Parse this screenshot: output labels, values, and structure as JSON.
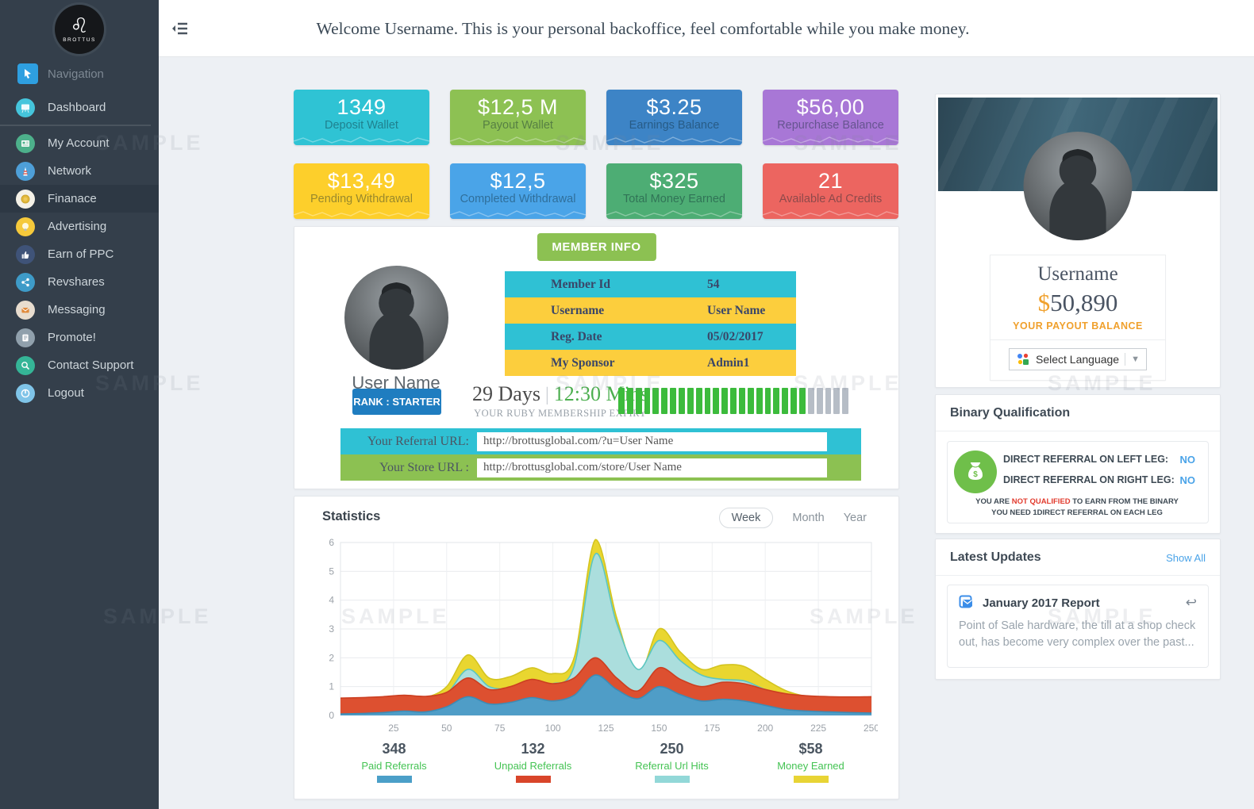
{
  "watermark": "SAMPLE",
  "sidebar": {
    "logo_text": "BROTTUS",
    "section_label": "Navigation",
    "items": [
      {
        "label": "Dashboard",
        "icon": "dashboard-icon",
        "color": "#45c5dc"
      },
      {
        "label": "My Account",
        "icon": "account-icon",
        "color": "#4db08b"
      },
      {
        "label": "Network",
        "icon": "network-icon",
        "color": "#4e9fd8"
      },
      {
        "label": "Finanace",
        "icon": "finance-icon",
        "color": "#f4f1e7",
        "active": true
      },
      {
        "label": "Advertising",
        "icon": "advertising-icon",
        "color": "#f5c93b"
      },
      {
        "label": "Earn of PPC",
        "icon": "earn-ppc-icon",
        "color": "#3f5378"
      },
      {
        "label": "Revshares",
        "icon": "revshares-icon",
        "color": "#3e9bc8"
      },
      {
        "label": "Messaging",
        "icon": "messaging-icon",
        "color": "#e8ddcf"
      },
      {
        "label": "Promote!",
        "icon": "promote-icon",
        "color": "#90a0ac"
      },
      {
        "label": "Contact Support",
        "icon": "support-icon",
        "color": "#35b597"
      },
      {
        "label": "Logout",
        "icon": "logout-icon",
        "color": "#7fc4e8"
      }
    ]
  },
  "header": {
    "welcome": "Welcome Username. This is your personal backoffice, feel comfortable while you make money."
  },
  "stat_cards": [
    {
      "value": "1349",
      "label": "Deposit Wallet",
      "color": "#2fc3d4"
    },
    {
      "value": "$12,5 M",
      "label": "Payout Wallet",
      "color": "#8dc153"
    },
    {
      "value": "$3.25",
      "label": "Earnings Balance",
      "color": "#3d84c6"
    },
    {
      "value": "$56,00",
      "label": "Repurchase Balance",
      "color": "#a877d6"
    },
    {
      "value": "$13,49",
      "label": "Pending Withdrawal",
      "color": "#fdcf2b"
    },
    {
      "value": "$12,5",
      "label": "Completed Withdrawal",
      "color": "#4aa4e8"
    },
    {
      "value": "$325",
      "label": "Total Money Earned",
      "color": "#4dad74"
    },
    {
      "value": "21",
      "label": "Available Ad Credits",
      "color": "#ec6560"
    }
  ],
  "member_info": {
    "badge": "MEMBER INFO",
    "avatar_name": "User Name",
    "rank_label": "RANK : STARTER",
    "rows": [
      {
        "label": "Member Id",
        "value": "54"
      },
      {
        "label": "Username",
        "value": "User Name"
      },
      {
        "label": "Reg. Date",
        "value": "05/02/2017"
      },
      {
        "label": "My Sponsor",
        "value": "Admin1"
      }
    ],
    "expiry_days": "29 Days",
    "expiry_time": "12:30 Mins",
    "expiry_caption": "YOUR RUBY MEMBERSHIP EXPIRY",
    "progress": {
      "filled": 22,
      "total": 27
    },
    "referral_url_label": "Your Referral URL:",
    "referral_url": "http://brottusglobal.com/?u=User Name",
    "store_url_label": "Your Store URL :",
    "store_url": "http://brottusglobal.com/store/User Name"
  },
  "statistics": {
    "title": "Statistics",
    "tabs": [
      "Week",
      "Month",
      "Year"
    ],
    "active_tab": "Week"
  },
  "chart_data": {
    "type": "area",
    "title": "Statistics",
    "x": [
      0,
      10,
      20,
      30,
      40,
      50,
      60,
      70,
      80,
      90,
      100,
      110,
      120,
      130,
      140,
      150,
      160,
      170,
      180,
      190,
      200,
      210,
      220,
      230,
      240,
      250
    ],
    "series": [
      {
        "name": "Money Earned",
        "stroke": "#d3c41f",
        "fill": "#e9d630",
        "values": [
          0.55,
          0.55,
          0.58,
          0.6,
          0.62,
          1.0,
          2.1,
          1.3,
          1.35,
          1.65,
          1.45,
          2.0,
          6.1,
          3.4,
          1.4,
          3.0,
          2.2,
          1.6,
          1.75,
          1.7,
          1.25,
          0.85,
          0.65,
          0.55,
          0.5,
          0.5
        ]
      },
      {
        "name": "Referral Url Hits",
        "stroke": "#5bc6c0",
        "fill": "#abdedd",
        "values": [
          0.5,
          0.5,
          0.5,
          0.52,
          0.55,
          0.75,
          1.6,
          1.0,
          0.95,
          1.2,
          1.1,
          1.7,
          5.6,
          3.2,
          1.6,
          2.6,
          1.9,
          1.4,
          1.25,
          1.2,
          0.9,
          0.7,
          0.55,
          0.5,
          0.47,
          0.45
        ]
      },
      {
        "name": "Unpaid Referrals",
        "stroke": "#cc3f21",
        "fill": "#dd5030",
        "values": [
          0.6,
          0.62,
          0.65,
          0.7,
          0.66,
          0.8,
          1.3,
          0.9,
          1.0,
          1.25,
          1.1,
          1.3,
          2.0,
          1.3,
          0.85,
          1.65,
          1.25,
          1.0,
          1.15,
          1.1,
          0.9,
          0.75,
          0.68,
          0.65,
          0.64,
          0.65
        ]
      },
      {
        "name": "Paid Referrals",
        "stroke": "#3d8bb5",
        "fill": "#4f9dc7",
        "values": [
          0.05,
          0.07,
          0.1,
          0.15,
          0.12,
          0.3,
          0.65,
          0.4,
          0.45,
          0.62,
          0.5,
          0.7,
          1.4,
          0.9,
          0.58,
          1.0,
          0.72,
          0.5,
          0.56,
          0.5,
          0.35,
          0.2,
          0.15,
          0.12,
          0.1,
          0.08
        ]
      }
    ],
    "xticks": [
      25,
      50,
      75,
      100,
      125,
      150,
      175,
      200,
      225,
      250
    ],
    "yticks": [
      0,
      1,
      2,
      3,
      4,
      5,
      6
    ],
    "ylim": [
      0,
      6
    ],
    "grid": true,
    "legend_position": "bottom"
  },
  "summary_stats": [
    {
      "value": "348",
      "label": "Paid Referrals",
      "color": "#4b9fc8"
    },
    {
      "value": "132",
      "label": "Unpaid Referrals",
      "color": "#d9452a"
    },
    {
      "value": "250",
      "label": "Referral Url Hits",
      "color": "#92d8d8"
    },
    {
      "value": "$58",
      "label": "Money Earned",
      "color": "#e8d435"
    }
  ],
  "profile": {
    "name": "Username",
    "balance_currency": "$",
    "balance": "50,890",
    "balance_caption": "YOUR PAYOUT BALANCE",
    "language_label": "Select Language"
  },
  "binary_qualification": {
    "title": "Binary Qualification",
    "left_leg_label": "DIRECT REFERRAL ON LEFT LEG:",
    "left_leg_value": "NO",
    "right_leg_label": "DIRECT REFERRAL ON RIGHT LEG:",
    "right_leg_value": "NO",
    "note_1a": "YOU ARE ",
    "note_1b": "NOT QUALIFIED",
    "note_1c": " TO EARN FROM THE BINARY",
    "note_2": "YOU NEED 1DIRECT REFERRAL ON EACH LEG"
  },
  "latest_updates": {
    "title": "Latest Updates",
    "show_all": "Show All",
    "post_title": "January 2017 Report",
    "post_body": "Point of Sale hardware, the till at a shop check out, has become very complex over the past..."
  }
}
